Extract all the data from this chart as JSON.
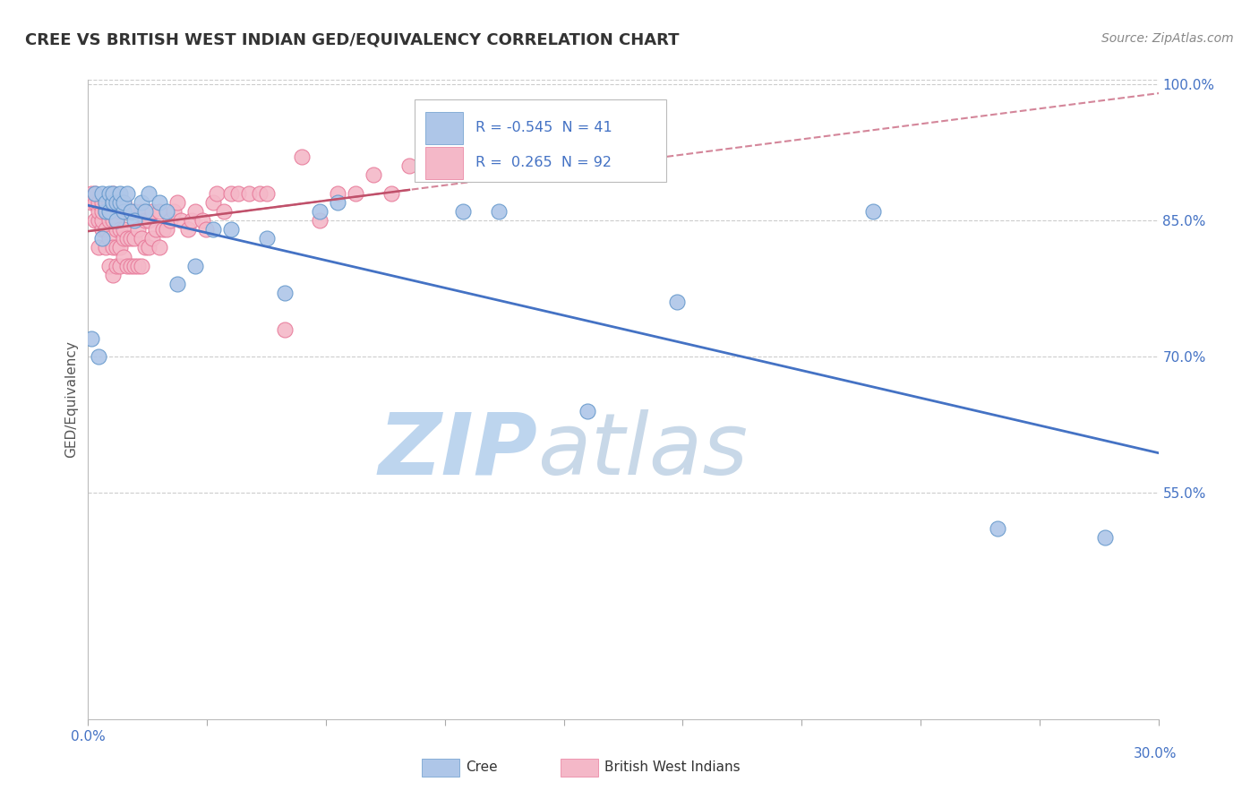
{
  "title": "CREE VS BRITISH WEST INDIAN GED/EQUIVALENCY CORRELATION CHART",
  "source": "Source: ZipAtlas.com",
  "ylabel": "GED/Equivalency",
  "x_min": 0.0,
  "x_max": 0.3,
  "y_min": 0.3,
  "y_max": 1.005,
  "cree_color": "#aec6e8",
  "cree_edge_color": "#6699cc",
  "bwi_color": "#f4b8c8",
  "bwi_edge_color": "#e87a9a",
  "cree_R": -0.545,
  "cree_N": 41,
  "bwi_R": 0.265,
  "bwi_N": 92,
  "blue_line_color": "#4472c4",
  "pink_solid_color": "#c0506a",
  "pink_dash_color": "#d4869a",
  "watermark_zip_color": "#bdd5ee",
  "watermark_atlas_color": "#c8d8e8",
  "legend_label_color": "#4472c4",
  "legend_text_color": "#333333",
  "grid_color": "#cccccc",
  "bg_color": "#ffffff",
  "title_color": "#333333",
  "source_color": "#888888",
  "tick_color": "#4472c4",
  "cree_x": [
    0.001,
    0.002,
    0.003,
    0.004,
    0.004,
    0.005,
    0.005,
    0.006,
    0.006,
    0.007,
    0.007,
    0.007,
    0.008,
    0.008,
    0.009,
    0.009,
    0.01,
    0.01,
    0.011,
    0.012,
    0.013,
    0.015,
    0.016,
    0.017,
    0.02,
    0.022,
    0.025,
    0.03,
    0.035,
    0.04,
    0.05,
    0.055,
    0.065,
    0.07,
    0.105,
    0.115,
    0.14,
    0.165,
    0.22,
    0.285,
    0.255
  ],
  "cree_y": [
    0.72,
    0.88,
    0.7,
    0.83,
    0.88,
    0.86,
    0.87,
    0.86,
    0.88,
    0.87,
    0.87,
    0.88,
    0.85,
    0.87,
    0.87,
    0.88,
    0.86,
    0.87,
    0.88,
    0.86,
    0.85,
    0.87,
    0.86,
    0.88,
    0.87,
    0.86,
    0.78,
    0.8,
    0.84,
    0.84,
    0.83,
    0.77,
    0.86,
    0.87,
    0.86,
    0.86,
    0.64,
    0.76,
    0.86,
    0.5,
    0.51
  ],
  "bwi_x": [
    0.001,
    0.001,
    0.002,
    0.002,
    0.002,
    0.003,
    0.003,
    0.003,
    0.003,
    0.004,
    0.004,
    0.004,
    0.004,
    0.005,
    0.005,
    0.005,
    0.005,
    0.006,
    0.006,
    0.006,
    0.006,
    0.006,
    0.007,
    0.007,
    0.007,
    0.007,
    0.007,
    0.007,
    0.008,
    0.008,
    0.008,
    0.008,
    0.008,
    0.009,
    0.009,
    0.009,
    0.009,
    0.009,
    0.01,
    0.01,
    0.01,
    0.01,
    0.01,
    0.011,
    0.011,
    0.011,
    0.012,
    0.012,
    0.013,
    0.013,
    0.013,
    0.014,
    0.014,
    0.015,
    0.015,
    0.015,
    0.016,
    0.016,
    0.017,
    0.017,
    0.018,
    0.018,
    0.019,
    0.02,
    0.02,
    0.021,
    0.022,
    0.023,
    0.024,
    0.025,
    0.026,
    0.028,
    0.029,
    0.03,
    0.032,
    0.033,
    0.035,
    0.036,
    0.038,
    0.04,
    0.042,
    0.045,
    0.048,
    0.05,
    0.055,
    0.06,
    0.065,
    0.07,
    0.075,
    0.08,
    0.085,
    0.09
  ],
  "bwi_y": [
    0.87,
    0.88,
    0.85,
    0.87,
    0.88,
    0.82,
    0.85,
    0.86,
    0.87,
    0.84,
    0.85,
    0.86,
    0.87,
    0.82,
    0.84,
    0.86,
    0.87,
    0.8,
    0.83,
    0.85,
    0.86,
    0.87,
    0.79,
    0.82,
    0.85,
    0.86,
    0.87,
    0.88,
    0.8,
    0.82,
    0.84,
    0.85,
    0.87,
    0.8,
    0.82,
    0.84,
    0.86,
    0.87,
    0.81,
    0.83,
    0.84,
    0.86,
    0.87,
    0.8,
    0.83,
    0.86,
    0.8,
    0.83,
    0.8,
    0.83,
    0.86,
    0.8,
    0.84,
    0.8,
    0.83,
    0.86,
    0.82,
    0.85,
    0.82,
    0.85,
    0.83,
    0.86,
    0.84,
    0.82,
    0.86,
    0.84,
    0.84,
    0.85,
    0.86,
    0.87,
    0.85,
    0.84,
    0.85,
    0.86,
    0.85,
    0.84,
    0.87,
    0.88,
    0.86,
    0.88,
    0.88,
    0.88,
    0.88,
    0.88,
    0.73,
    0.92,
    0.85,
    0.88,
    0.88,
    0.9,
    0.88,
    0.91
  ]
}
